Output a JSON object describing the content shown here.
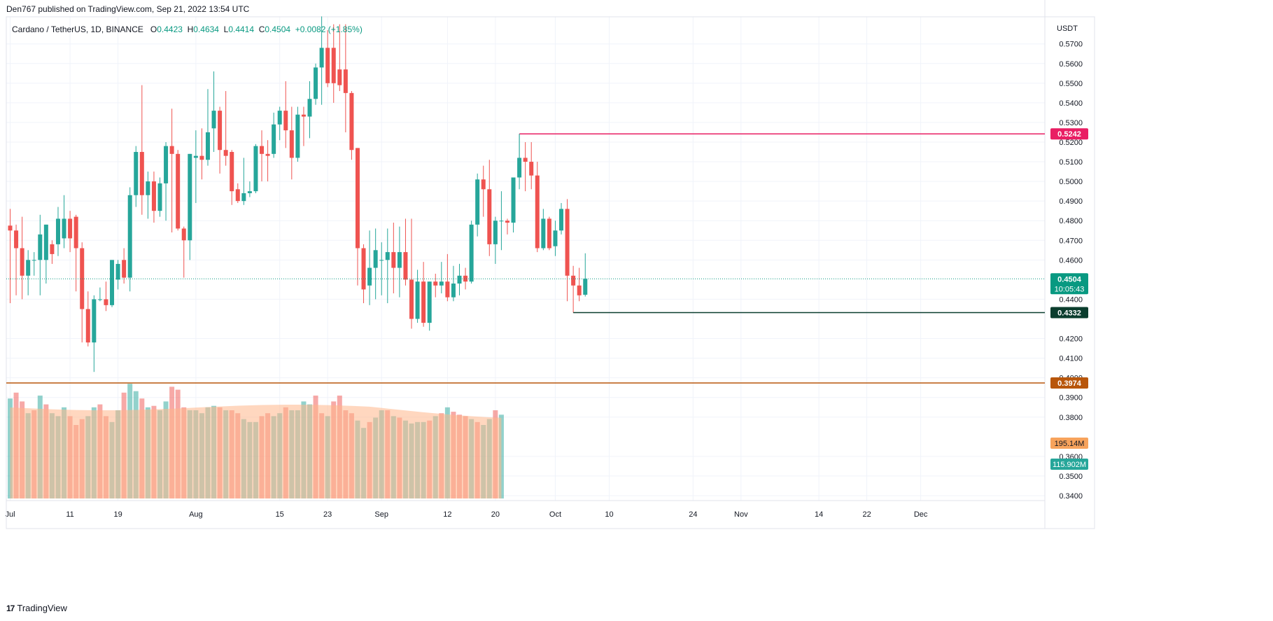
{
  "header": {
    "published": "Den767 published on TradingView.com, Sep 21, 2022 13:54 UTC",
    "symbol": "Cardano / TetherUS, 1D, BINANCE",
    "open_label": "O",
    "open": "0.4423",
    "high_label": "H",
    "high": "0.4634",
    "low_label": "L",
    "low": "0.4414",
    "close_label": "C",
    "close": "0.4504",
    "change": "+0.0082 (+1.85%)"
  },
  "footer": {
    "brand": "TradingView",
    "logo_text": "17"
  },
  "colors": {
    "up": "#26a69a",
    "down": "#ef5350",
    "resistance": "#e91e63",
    "support_green": "#0b3d2e",
    "support_orange": "#b8560b",
    "volume_ma": "#ffb78a",
    "last_price": "#089981",
    "grid": "#f0f3fa"
  },
  "chart_data": {
    "type": "candlestick",
    "pair": "ADA/USDT",
    "timeframe": "1D",
    "currency_axis_label": "USDT",
    "y_ticks": [
      "0.5700",
      "0.5600",
      "0.5500",
      "0.5400",
      "0.5300",
      "0.5200",
      "0.5100",
      "0.5000",
      "0.4900",
      "0.4800",
      "0.4700",
      "0.4600",
      "0.4400",
      "0.4200",
      "0.4100",
      "0.4000",
      "0.3900",
      "0.3800",
      "0.3600",
      "0.3500",
      "0.3400"
    ],
    "x_ticks": [
      {
        "label": "Jul",
        "index": 0
      },
      {
        "label": "11",
        "index": 10
      },
      {
        "label": "19",
        "index": 18
      },
      {
        "label": "Aug",
        "index": 31
      },
      {
        "label": "15",
        "index": 45
      },
      {
        "label": "23",
        "index": 53
      },
      {
        "label": "Sep",
        "index": 62
      },
      {
        "label": "12",
        "index": 73
      },
      {
        "label": "20",
        "index": 81
      },
      {
        "label": "Oct",
        "index": 91
      },
      {
        "label": "10",
        "index": 100
      },
      {
        "label": "24",
        "index": 114
      },
      {
        "label": "Nov",
        "index": 122
      },
      {
        "label": "14",
        "index": 135
      },
      {
        "label": "22",
        "index": 143
      },
      {
        "label": "Dec",
        "index": 152
      }
    ],
    "ylim": [
      0.3375,
      0.5838
    ],
    "candles": [
      {
        "d": "Jul 1",
        "o": 0.4775,
        "h": 0.486,
        "c": 0.475,
        "l": 0.438
      },
      {
        "d": "Jul 2",
        "o": 0.475,
        "h": 0.478,
        "c": 0.466,
        "l": 0.442
      },
      {
        "d": "Jul 3",
        "o": 0.466,
        "h": 0.482,
        "c": 0.452,
        "l": 0.44
      },
      {
        "d": "Jul 4",
        "o": 0.452,
        "h": 0.465,
        "c": 0.46,
        "l": 0.442
      },
      {
        "d": "Jul 5",
        "o": 0.46,
        "h": 0.464,
        "c": 0.46,
        "l": 0.452
      },
      {
        "d": "Jul 6",
        "o": 0.46,
        "h": 0.483,
        "c": 0.473,
        "l": 0.442
      },
      {
        "d": "Jul 7",
        "o": 0.46,
        "h": 0.478,
        "c": 0.478,
        "l": 0.448
      },
      {
        "d": "Jul 8",
        "o": 0.468,
        "h": 0.47,
        "c": 0.463,
        "l": 0.458
      },
      {
        "d": "Jul 9",
        "o": 0.468,
        "h": 0.487,
        "c": 0.481,
        "l": 0.462
      },
      {
        "d": "Jul 10",
        "o": 0.471,
        "h": 0.493,
        "c": 0.481,
        "l": 0.466
      },
      {
        "d": "Jul 11",
        "o": 0.481,
        "h": 0.485,
        "c": 0.471,
        "l": 0.464
      },
      {
        "d": "Jul 12",
        "o": 0.482,
        "h": 0.483,
        "c": 0.466,
        "l": 0.444
      },
      {
        "d": "Jul 13",
        "o": 0.466,
        "h": 0.469,
        "c": 0.435,
        "l": 0.418
      },
      {
        "d": "Jul 14",
        "o": 0.435,
        "h": 0.444,
        "c": 0.418,
        "l": 0.416
      },
      {
        "d": "Jul 15",
        "o": 0.418,
        "h": 0.442,
        "c": 0.44,
        "l": 0.403
      },
      {
        "d": "Jul 16",
        "o": 0.44,
        "h": 0.446,
        "c": 0.44,
        "l": 0.439
      },
      {
        "d": "Jul 17",
        "o": 0.44,
        "h": 0.449,
        "c": 0.437,
        "l": 0.434
      },
      {
        "d": "Jul 18",
        "o": 0.437,
        "h": 0.46,
        "c": 0.46,
        "l": 0.436
      },
      {
        "d": "Jul 19",
        "o": 0.45,
        "h": 0.46,
        "c": 0.458,
        "l": 0.445
      },
      {
        "d": "Jul 20",
        "o": 0.46,
        "h": 0.466,
        "c": 0.451,
        "l": 0.448
      },
      {
        "d": "Jul 21",
        "o": 0.451,
        "h": 0.497,
        "c": 0.493,
        "l": 0.444
      },
      {
        "d": "Jul 22",
        "o": 0.493,
        "h": 0.518,
        "c": 0.515,
        "l": 0.487
      },
      {
        "d": "Jul 23",
        "o": 0.515,
        "h": 0.549,
        "c": 0.493,
        "l": 0.483
      },
      {
        "d": "Jul 24",
        "o": 0.493,
        "h": 0.505,
        "c": 0.5,
        "l": 0.481
      },
      {
        "d": "Jul 25",
        "o": 0.5,
        "h": 0.505,
        "c": 0.485,
        "l": 0.479
      },
      {
        "d": "Jul 26",
        "o": 0.485,
        "h": 0.502,
        "c": 0.499,
        "l": 0.482
      },
      {
        "d": "Jul 27",
        "o": 0.499,
        "h": 0.52,
        "c": 0.518,
        "l": 0.48
      },
      {
        "d": "Jul 28",
        "o": 0.518,
        "h": 0.537,
        "c": 0.514,
        "l": 0.474
      },
      {
        "d": "Jul 29",
        "o": 0.514,
        "h": 0.516,
        "c": 0.476,
        "l": 0.475
      },
      {
        "d": "Jul 30",
        "o": 0.476,
        "h": 0.477,
        "c": 0.47,
        "l": 0.451
      },
      {
        "d": "Jul 31",
        "o": 0.47,
        "h": 0.514,
        "c": 0.514,
        "l": 0.46
      },
      {
        "d": "Aug 1",
        "o": 0.512,
        "h": 0.526,
        "c": 0.513,
        "l": 0.489
      },
      {
        "d": "Aug 2",
        "o": 0.513,
        "h": 0.527,
        "c": 0.511,
        "l": 0.501
      },
      {
        "d": "Aug 3",
        "o": 0.511,
        "h": 0.547,
        "c": 0.525,
        "l": 0.508
      },
      {
        "d": "Aug 4",
        "o": 0.527,
        "h": 0.556,
        "c": 0.536,
        "l": 0.515
      },
      {
        "d": "Aug 5",
        "o": 0.536,
        "h": 0.538,
        "c": 0.516,
        "l": 0.504
      },
      {
        "d": "Aug 6",
        "o": 0.516,
        "h": 0.546,
        "c": 0.513,
        "l": 0.508
      },
      {
        "d": "Aug 7",
        "o": 0.515,
        "h": 0.516,
        "c": 0.495,
        "l": 0.488
      },
      {
        "d": "Aug 8",
        "o": 0.496,
        "h": 0.499,
        "c": 0.49,
        "l": 0.489
      },
      {
        "d": "Aug 9",
        "o": 0.49,
        "h": 0.512,
        "c": 0.494,
        "l": 0.488
      },
      {
        "d": "Aug 10",
        "o": 0.494,
        "h": 0.5,
        "c": 0.495,
        "l": 0.492
      },
      {
        "d": "Aug 11",
        "o": 0.495,
        "h": 0.519,
        "c": 0.518,
        "l": 0.494
      },
      {
        "d": "Aug 12",
        "o": 0.518,
        "h": 0.526,
        "c": 0.514,
        "l": 0.5
      },
      {
        "d": "Aug 13",
        "o": 0.514,
        "h": 0.521,
        "c": 0.513,
        "l": 0.5
      },
      {
        "d": "Aug 14",
        "o": 0.514,
        "h": 0.535,
        "c": 0.529,
        "l": 0.512
      },
      {
        "d": "Aug 15",
        "o": 0.529,
        "h": 0.538,
        "c": 0.536,
        "l": 0.521
      },
      {
        "d": "Aug 16",
        "o": 0.536,
        "h": 0.551,
        "c": 0.526,
        "l": 0.517
      },
      {
        "d": "Aug 17",
        "o": 0.526,
        "h": 0.538,
        "c": 0.512,
        "l": 0.501
      },
      {
        "d": "Aug 18",
        "o": 0.512,
        "h": 0.538,
        "c": 0.534,
        "l": 0.51
      },
      {
        "d": "Aug 19",
        "o": 0.534,
        "h": 0.538,
        "c": 0.533,
        "l": 0.518
      },
      {
        "d": "Aug 20",
        "o": 0.533,
        "h": 0.551,
        "c": 0.542,
        "l": 0.522
      },
      {
        "d": "Aug 21",
        "o": 0.542,
        "h": 0.56,
        "c": 0.558,
        "l": 0.539
      },
      {
        "d": "Aug 22",
        "o": 0.558,
        "h": 0.584,
        "c": 0.568,
        "l": 0.539
      },
      {
        "d": "Aug 23",
        "o": 0.568,
        "h": 0.577,
        "c": 0.55,
        "l": 0.548
      },
      {
        "d": "Aug 24",
        "o": 0.568,
        "h": 0.58,
        "c": 0.55,
        "l": 0.54
      },
      {
        "d": "Aug 25",
        "o": 0.557,
        "h": 0.58,
        "c": 0.549,
        "l": 0.546
      },
      {
        "d": "Aug 26",
        "o": 0.557,
        "h": 0.58,
        "c": 0.545,
        "l": 0.525
      },
      {
        "d": "Aug 27",
        "o": 0.545,
        "h": 0.546,
        "c": 0.516,
        "l": 0.511
      },
      {
        "d": "Aug 28",
        "o": 0.517,
        "h": 0.517,
        "c": 0.466,
        "l": 0.447
      },
      {
        "d": "Aug 29",
        "o": 0.466,
        "h": 0.468,
        "c": 0.445,
        "l": 0.438
      },
      {
        "d": "Aug 30",
        "o": 0.447,
        "h": 0.475,
        "c": 0.456,
        "l": 0.437
      },
      {
        "d": "Aug 31",
        "o": 0.456,
        "h": 0.476,
        "c": 0.465,
        "l": 0.44
      }
    ],
    "candles_b": [
      {
        "d": "Sep 1",
        "o": 0.46,
        "h": 0.469,
        "c": 0.46,
        "l": 0.442
      },
      {
        "d": "Sep 2",
        "o": 0.46,
        "h": 0.476,
        "c": 0.464,
        "l": 0.438
      },
      {
        "d": "Sep 3",
        "o": 0.464,
        "h": 0.479,
        "c": 0.456,
        "l": 0.443
      },
      {
        "d": "Sep 4",
        "o": 0.456,
        "h": 0.477,
        "c": 0.464,
        "l": 0.441
      },
      {
        "d": "Sep 5",
        "o": 0.464,
        "h": 0.481,
        "c": 0.45,
        "l": 0.447
      },
      {
        "d": "Sep 6",
        "o": 0.45,
        "h": 0.481,
        "c": 0.43,
        "l": 0.425
      },
      {
        "d": "Sep 7",
        "o": 0.43,
        "h": 0.455,
        "c": 0.449,
        "l": 0.428
      },
      {
        "d": "Sep 8",
        "o": 0.449,
        "h": 0.459,
        "c": 0.428,
        "l": 0.426
      },
      {
        "d": "Sep 9",
        "o": 0.428,
        "h": 0.449,
        "c": 0.449,
        "l": 0.424
      },
      {
        "d": "Sep 10",
        "o": 0.449,
        "h": 0.453,
        "c": 0.447,
        "l": 0.441
      },
      {
        "d": "Sep 11",
        "o": 0.447,
        "h": 0.459,
        "c": 0.449,
        "l": 0.443
      },
      {
        "d": "Sep 12",
        "o": 0.449,
        "h": 0.463,
        "c": 0.441,
        "l": 0.439
      },
      {
        "d": "Sep 13",
        "o": 0.441,
        "h": 0.457,
        "c": 0.448,
        "l": 0.439
      },
      {
        "d": "Sep 14",
        "o": 0.448,
        "h": 0.458,
        "c": 0.452,
        "l": 0.442
      },
      {
        "d": "Sep 15",
        "o": 0.452,
        "h": 0.456,
        "c": 0.449,
        "l": 0.445
      },
      {
        "d": "Sep 16",
        "o": 0.449,
        "h": 0.48,
        "c": 0.478,
        "l": 0.448
      },
      {
        "d": "Sep 17",
        "o": 0.478,
        "h": 0.504,
        "c": 0.501,
        "l": 0.472
      },
      {
        "d": "Sep 18",
        "o": 0.501,
        "h": 0.508,
        "c": 0.496,
        "l": 0.482
      },
      {
        "d": "Sep 19",
        "o": 0.496,
        "h": 0.511,
        "c": 0.468,
        "l": 0.462
      },
      {
        "d": "Sep 20",
        "o": 0.468,
        "h": 0.482,
        "c": 0.48,
        "l": 0.458
      },
      {
        "d": "Sep 21",
        "o": 0.48,
        "h": 0.495,
        "c": 0.48,
        "l": 0.465
      }
    ],
    "candles_c": [
      {
        "d": "Sep 22",
        "o": 0.48,
        "h": 0.481,
        "c": 0.479,
        "l": 0.473
      },
      {
        "d": "Sep 23",
        "o": 0.479,
        "h": 0.501,
        "c": 0.502,
        "l": 0.474
      },
      {
        "d": "Sep 24",
        "o": 0.502,
        "h": 0.5242,
        "c": 0.512,
        "l": 0.496
      },
      {
        "d": "Sep 25",
        "o": 0.512,
        "h": 0.52,
        "c": 0.51,
        "l": 0.495
      },
      {
        "d": "Sep 26",
        "o": 0.51,
        "h": 0.52,
        "c": 0.503,
        "l": 0.496
      },
      {
        "d": "Sep 27",
        "o": 0.503,
        "h": 0.51,
        "c": 0.466,
        "l": 0.464
      },
      {
        "d": "Sep 28",
        "o": 0.466,
        "h": 0.486,
        "c": 0.481,
        "l": 0.465
      },
      {
        "d": "Sep 29",
        "o": 0.481,
        "h": 0.482,
        "c": 0.466,
        "l": 0.465
      },
      {
        "d": "Sep 30",
        "o": 0.467,
        "h": 0.48,
        "c": 0.475,
        "l": 0.462
      },
      {
        "d": "Oct 1",
        "o": 0.475,
        "h": 0.489,
        "c": 0.486,
        "l": 0.473
      },
      {
        "d": "Oct 2",
        "o": 0.486,
        "h": 0.491,
        "c": 0.452,
        "l": 0.439
      },
      {
        "d": "Oct 3",
        "o": 0.452,
        "h": 0.457,
        "c": 0.447,
        "l": 0.4332
      },
      {
        "d": "Oct 4",
        "o": 0.447,
        "h": 0.456,
        "c": 0.442,
        "l": 0.439
      },
      {
        "d": "Oct 5",
        "o": 0.4423,
        "h": 0.4634,
        "c": 0.4504,
        "l": 0.4414
      }
    ],
    "volume_bars_note": "volume in lower pane",
    "volume": [
      68,
      72,
      66,
      58,
      60,
      70,
      64,
      58,
      56,
      62,
      56,
      50,
      54,
      56,
      62,
      64,
      56,
      52,
      60,
      72,
      78,
      73,
      68,
      62,
      63,
      60,
      66,
      76,
      74,
      62,
      60,
      60,
      58,
      62,
      63,
      62,
      60,
      60,
      58,
      54,
      52,
      52,
      56,
      58,
      56,
      58,
      62,
      60,
      60,
      66,
      64,
      70,
      58,
      56,
      66,
      70,
      60,
      58,
      53,
      48,
      52,
      55,
      60,
      60,
      56,
      55,
      53,
      51,
      52,
      52,
      53,
      56,
      58,
      62,
      59,
      57,
      56,
      54,
      52,
      50,
      54,
      60,
      57
    ],
    "volume_dir": [
      1,
      0,
      0,
      1,
      0,
      1,
      0,
      1,
      1,
      1,
      0,
      0,
      0,
      1,
      1,
      0,
      0,
      1,
      1,
      0,
      1,
      1,
      0,
      1,
      0,
      1,
      1,
      0,
      0,
      0,
      1,
      1,
      1,
      1,
      1,
      0,
      1,
      0,
      0,
      1,
      1,
      1,
      0,
      0,
      1,
      1,
      0,
      1,
      1,
      1,
      1,
      0,
      0,
      1,
      0,
      0,
      0,
      0,
      1,
      1,
      0,
      1,
      1,
      0,
      1,
      0,
      1,
      1,
      1,
      1,
      0,
      1,
      0,
      1,
      0,
      0,
      0,
      1,
      0,
      1,
      1,
      0,
      1
    ],
    "volume_ma_values": [
      0.9
    ],
    "levels": [
      {
        "name": "resistance",
        "price": 0.5242,
        "label": "0.5242",
        "color": "#e91e63"
      },
      {
        "name": "support",
        "price": 0.4332,
        "label": "0.4332",
        "color": "#0b3d2e"
      },
      {
        "name": "major-support",
        "price": 0.3974,
        "label": "0.3974",
        "color": "#b8560b"
      }
    ],
    "last_price": "0.4504",
    "countdown": "10:05:43",
    "volume_ma_label": "195.14M",
    "volume_label": "115.902M"
  }
}
